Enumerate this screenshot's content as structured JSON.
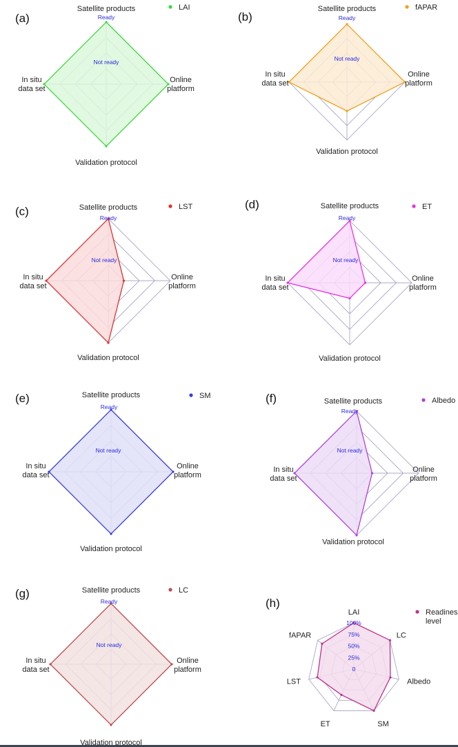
{
  "figure": {
    "status_labels": {
      "ready": "Ready",
      "not_ready": "Not ready"
    }
  },
  "chart_data": [
    {
      "id": "a",
      "panel_label": "(a)",
      "type": "radar",
      "axes": [
        "Satellite products",
        "Online platform",
        "Validation protocol",
        "In situ data set"
      ],
      "axis_lines": [
        [
          "Satellite products"
        ],
        [
          "Online",
          "platform"
        ],
        [
          "Validation protocol"
        ],
        [
          "In situ",
          "data set"
        ]
      ],
      "range": [
        0,
        4
      ],
      "grid_levels": 4,
      "series": [
        {
          "name": "LAI",
          "values": [
            4,
            4,
            4,
            4
          ],
          "color": "#3fd63f",
          "fill": "#dcf8dc"
        }
      ]
    },
    {
      "id": "b",
      "panel_label": "(b)",
      "type": "radar",
      "axes": [
        "Satellite products",
        "Online platform",
        "Validation protocol",
        "In situ data set"
      ],
      "axis_lines": [
        [
          "Satellite products"
        ],
        [
          "Online",
          "platform"
        ],
        [
          "Validation protocol"
        ],
        [
          "In situ",
          "data set"
        ]
      ],
      "range": [
        0,
        4
      ],
      "grid_levels": 4,
      "series": [
        {
          "name": "fAPAR",
          "values": [
            4,
            4,
            2,
            4
          ],
          "color": "#f0a020",
          "fill": "#fcebd2"
        }
      ]
    },
    {
      "id": "c",
      "panel_label": "(c)",
      "type": "radar",
      "axes": [
        "Satellite products",
        "Online platform",
        "Validation protocol",
        "In situ data set"
      ],
      "axis_lines": [
        [
          "Satellite products"
        ],
        [
          "Online",
          "platform"
        ],
        [
          "Validation protocol"
        ],
        [
          "In situ",
          "data set"
        ]
      ],
      "range": [
        0,
        4
      ],
      "grid_levels": 4,
      "series": [
        {
          "name": "LST",
          "values": [
            4,
            1,
            4,
            4
          ],
          "color": "#e03030",
          "fill": "#fadcdc"
        }
      ]
    },
    {
      "id": "d",
      "panel_label": "(d)",
      "type": "radar",
      "axes": [
        "Satellite products",
        "Online platform",
        "Validation protocol",
        "In situ data set"
      ],
      "axis_lines": [
        [
          "Satellite products"
        ],
        [
          "Online",
          "platform"
        ],
        [
          "Validation protocol"
        ],
        [
          "In situ",
          "data set"
        ]
      ],
      "range": [
        0,
        4
      ],
      "grid_levels": 4,
      "series": [
        {
          "name": "ET",
          "values": [
            4,
            1,
            1,
            4
          ],
          "color": "#e830e8",
          "fill": "#fadcfa"
        }
      ]
    },
    {
      "id": "e",
      "panel_label": "(e)",
      "type": "radar",
      "axes": [
        "Satellite products",
        "Online platform",
        "Validation protocol",
        "In situ data set"
      ],
      "axis_lines": [
        [
          "Satellite products"
        ],
        [
          "Online",
          "platform"
        ],
        [
          "Validation protocol"
        ],
        [
          "In situ",
          "data set"
        ]
      ],
      "range": [
        0,
        4
      ],
      "grid_levels": 4,
      "series": [
        {
          "name": "SM",
          "values": [
            4,
            4,
            4,
            4
          ],
          "color": "#3a3ae8",
          "fill": "#e0e0f8"
        }
      ]
    },
    {
      "id": "f",
      "panel_label": "(f)",
      "type": "radar",
      "axes": [
        "Satellite products",
        "Online platform",
        "Validation protocol",
        "In situ data set"
      ],
      "axis_lines": [
        [
          "Satellite products"
        ],
        [
          "Online",
          "platform"
        ],
        [
          "Validation protocol"
        ],
        [
          "In situ",
          "data set"
        ]
      ],
      "range": [
        0,
        4
      ],
      "grid_levels": 4,
      "series": [
        {
          "name": "Albedo",
          "values": [
            4,
            1,
            4,
            4
          ],
          "color": "#b040e0",
          "fill": "#ecdcf6"
        }
      ]
    },
    {
      "id": "g",
      "panel_label": "(g)",
      "type": "radar",
      "axes": [
        "Satellite products",
        "Online platform",
        "Validation protocol",
        "In situ data set"
      ],
      "axis_lines": [
        [
          "Satellite products"
        ],
        [
          "Online",
          "platform"
        ],
        [
          "Validation protocol"
        ],
        [
          "In situ",
          "data set"
        ]
      ],
      "range": [
        0,
        4
      ],
      "grid_levels": 4,
      "series": [
        {
          "name": "LC",
          "values": [
            4,
            4,
            4,
            4
          ],
          "color": "#c04850",
          "fill": "#f2e2e0"
        }
      ]
    },
    {
      "id": "h",
      "panel_label": "(h)",
      "type": "radar",
      "axes": [
        "LAI",
        "LC",
        "Albedo",
        "SM",
        "ET",
        "LST",
        "fAPAR"
      ],
      "axis_lines": [
        [
          "LAI"
        ],
        [
          "LC"
        ],
        [
          "Albedo"
        ],
        [
          "SM"
        ],
        [
          "ET"
        ],
        [
          "LST"
        ],
        [
          "fAPAR"
        ]
      ],
      "range": [
        0,
        100
      ],
      "grid_levels": 4,
      "tick_labels": [
        "0",
        "25%",
        "50%",
        "75%",
        "100%"
      ],
      "series": [
        {
          "name": "Readiness level",
          "legend_lines": [
            "Readines",
            "level"
          ],
          "values": [
            100,
            100,
            81,
            100,
            62,
            81,
            88
          ],
          "color": "#c0308c",
          "fill": "#f3dcec"
        }
      ]
    }
  ]
}
